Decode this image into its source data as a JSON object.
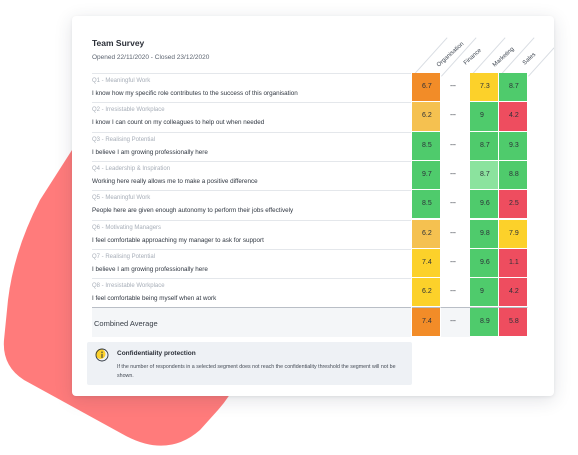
{
  "colors": {
    "dark_orange": "#f28c28",
    "light_orange": "#f5c150",
    "yellow": "#fcd12a",
    "green": "#4fcb6c",
    "light_green": "#8be39e",
    "red": "#ee4d5f",
    "blob": "#ff7a7a"
  },
  "survey": {
    "title": "Team Survey",
    "subtitle": "Opened 22/11/2020 - Closed 23/12/2020"
  },
  "columns": [
    "Organisation",
    "Finance",
    "Marketing",
    "Sales"
  ],
  "rows": [
    {
      "question": "Q1 - Meaningful Work",
      "statement": "I know how my specific role contributes to the success of this organisation",
      "org": "6.7",
      "finance": "---",
      "marketing": "7.3",
      "sales": "8.7"
    },
    {
      "question": "Q2 - Irresistable Workplace",
      "statement": "I know I can count on my colleagues to help out when needed",
      "org": "6.2",
      "finance": "---",
      "marketing": "9",
      "sales": "4.2"
    },
    {
      "question": "Q3 - Realising Potential",
      "statement": "I believe I am growing professionally here",
      "org": "8.5",
      "finance": "---",
      "marketing": "8.7",
      "sales": "9.3"
    },
    {
      "question": "Q4 - Leadership & Inspiration",
      "statement": "Working here really allows me to make a positive difference",
      "org": "9.7",
      "finance": "---",
      "marketing": "8.7",
      "sales": "8.8"
    },
    {
      "question": "Q5 - Meaningful Work",
      "statement": "People here are given enough autonomy to perform their jobs effectively",
      "org": "8.5",
      "finance": "---",
      "marketing": "9.6",
      "sales": "2.5"
    },
    {
      "question": "Q6 - Motivating Managers",
      "statement": "I feel comfortable approaching my manager to ask for support",
      "org": "6.2",
      "finance": "---",
      "marketing": "9.8",
      "sales": "7.9"
    },
    {
      "question": "Q7 - Realising Potential",
      "statement": "I believe I am growing professionally here",
      "org": "7.4",
      "finance": "---",
      "marketing": "9.6",
      "sales": "1.1"
    },
    {
      "question": "Q8 - Irresistable Workplace",
      "statement": "I feel comfortable being myself when at work",
      "org": "6.2",
      "finance": "---",
      "marketing": "9",
      "sales": "4.2"
    }
  ],
  "combined": {
    "label": "Combined Average",
    "org": "7.4",
    "finance": "---",
    "marketing": "8.9",
    "sales": "5.8"
  },
  "confidentiality": {
    "title": "Confidentiality protection",
    "text": "If the number of respondents in a selected segment does not reach the confidentiality threshold the segment will not be shown.",
    "icon": "info-icon"
  }
}
